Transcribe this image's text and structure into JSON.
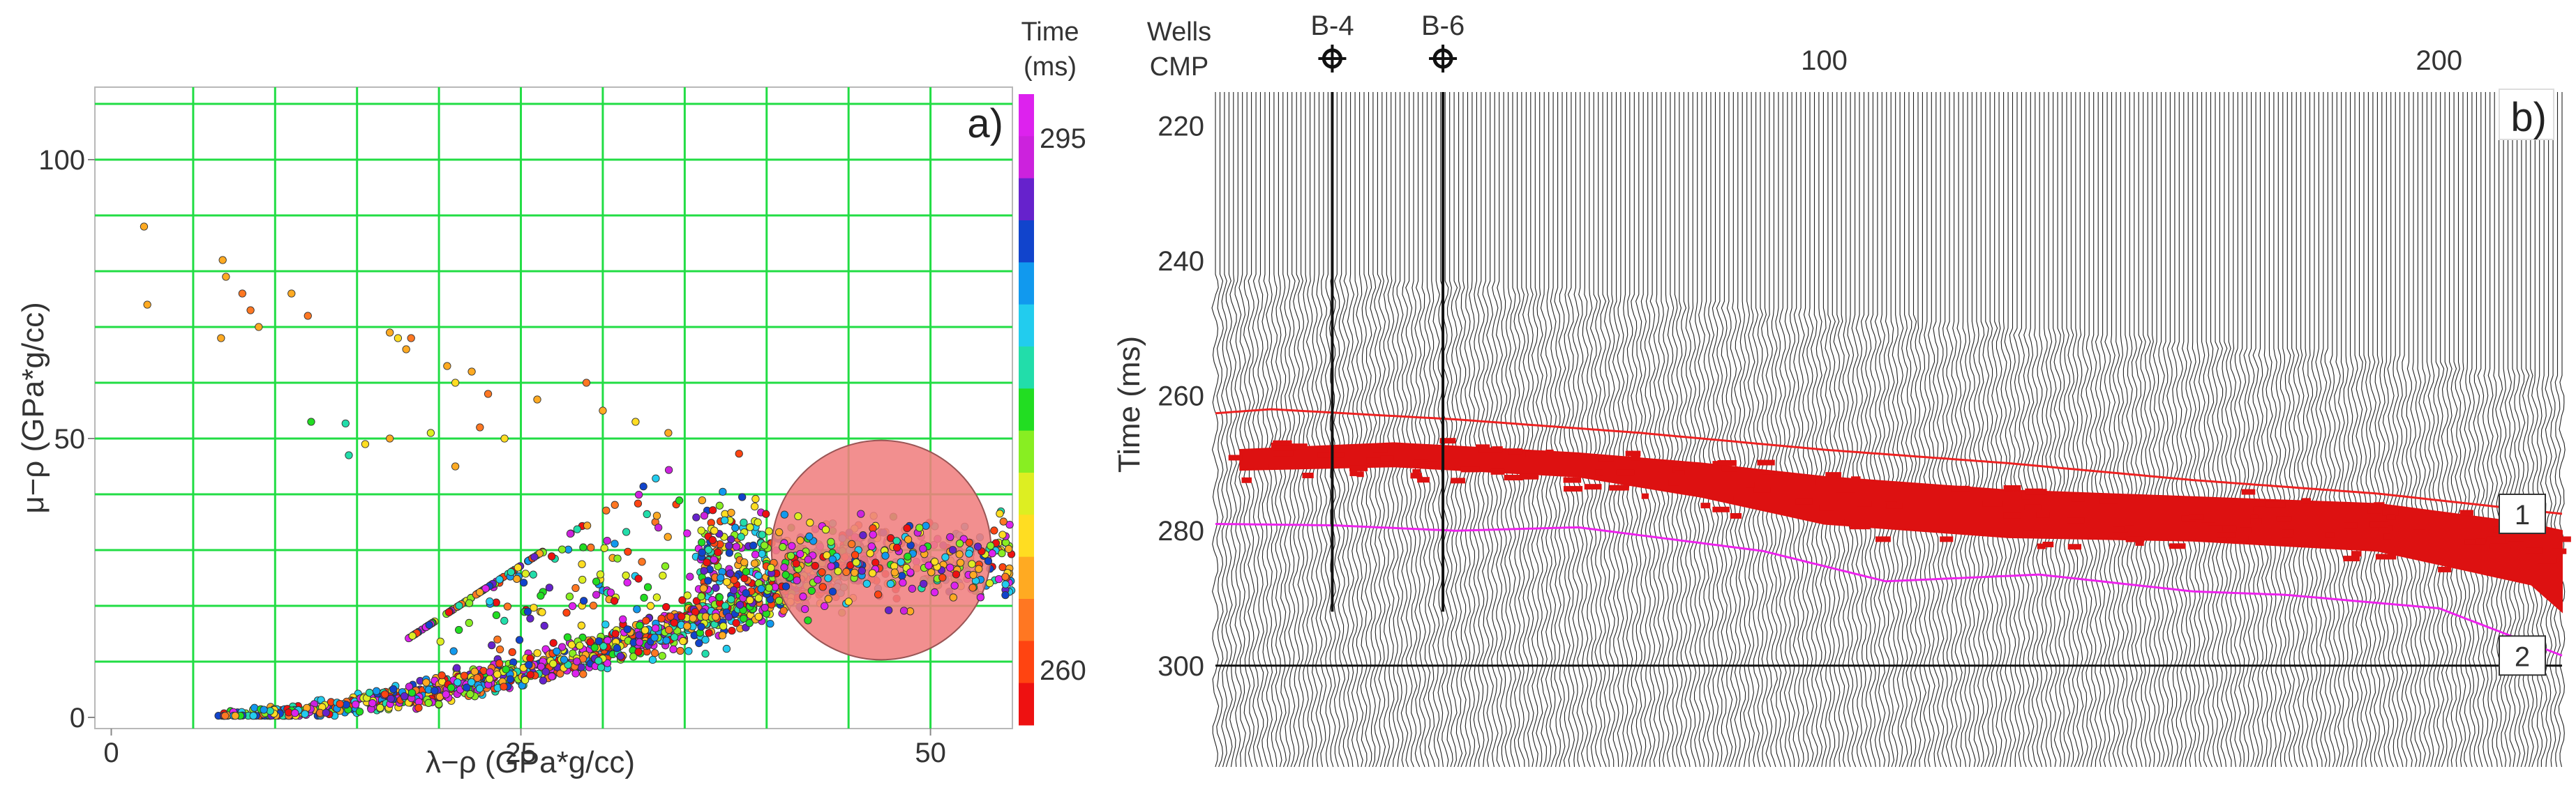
{
  "chart_data": [
    {
      "type": "scatter",
      "panel_label": "a)",
      "xlabel": "λ−ρ (GPa*g/cc)",
      "ylabel": "μ−ρ (GPa*g/cc)",
      "xlim": [
        -1,
        55
      ],
      "ylim": [
        -2,
        113
      ],
      "xticks": [
        "0",
        "25",
        "50"
      ],
      "yticks": [
        "0",
        "50",
        "100"
      ],
      "grid": true,
      "grid_color": "#22dd44",
      "colorbar": {
        "title_line1": "Time",
        "title_line2": "(ms)",
        "tick_top": "295",
        "tick_bottom": "260",
        "colors": [
          "#ee1111",
          "#ff4411",
          "#ff7722",
          "#ffaa22",
          "#ffdd22",
          "#ddee22",
          "#88ee22",
          "#22dd22",
          "#22ddaa",
          "#22ccee",
          "#1199ee",
          "#1144cc",
          "#6622cc",
          "#cc22dd",
          "#dd22ee"
        ]
      },
      "highlight_circle": {
        "cx": 47,
        "cy": 30,
        "r": 6.7,
        "color": "#f08080"
      },
      "outlier_points": [
        {
          "x": 2,
          "y": 88,
          "c": "#ffaa22"
        },
        {
          "x": 2.2,
          "y": 74,
          "c": "#ffaa22"
        },
        {
          "x": 6.8,
          "y": 82,
          "c": "#ffaa22"
        },
        {
          "x": 7,
          "y": 79,
          "c": "#ffaa22"
        },
        {
          "x": 6.7,
          "y": 68,
          "c": "#ffaa22"
        },
        {
          "x": 8,
          "y": 76,
          "c": "#ff7722"
        },
        {
          "x": 8.5,
          "y": 73,
          "c": "#ff7722"
        },
        {
          "x": 9,
          "y": 70,
          "c": "#ffaa22"
        },
        {
          "x": 11,
          "y": 76,
          "c": "#ffaa22"
        },
        {
          "x": 12,
          "y": 72,
          "c": "#ff7722"
        },
        {
          "x": 17,
          "y": 69,
          "c": "#ffaa22"
        },
        {
          "x": 17.5,
          "y": 68,
          "c": "#ffdd22"
        },
        {
          "x": 18,
          "y": 66,
          "c": "#ffaa22"
        },
        {
          "x": 18.3,
          "y": 68,
          "c": "#ff7722"
        },
        {
          "x": 20.5,
          "y": 63,
          "c": "#ffaa22"
        },
        {
          "x": 22,
          "y": 62,
          "c": "#ffaa22"
        },
        {
          "x": 21,
          "y": 60,
          "c": "#ffdd22"
        },
        {
          "x": 23,
          "y": 58,
          "c": "#ff7722"
        },
        {
          "x": 12.2,
          "y": 53,
          "c": "#22dd22"
        },
        {
          "x": 14.3,
          "y": 52.7,
          "c": "#22ddaa"
        },
        {
          "x": 14.5,
          "y": 47,
          "c": "#22ddaa"
        },
        {
          "x": 15.5,
          "y": 49,
          "c": "#ffdd22"
        },
        {
          "x": 17,
          "y": 50,
          "c": "#ffaa22"
        },
        {
          "x": 19.5,
          "y": 51,
          "c": "#ddee22"
        },
        {
          "x": 21,
          "y": 45,
          "c": "#ffaa22"
        },
        {
          "x": 22.5,
          "y": 52,
          "c": "#ff7722"
        },
        {
          "x": 24,
          "y": 50,
          "c": "#ffdd22"
        },
        {
          "x": 26,
          "y": 57,
          "c": "#ffaa22"
        },
        {
          "x": 29,
          "y": 60,
          "c": "#ff7722"
        },
        {
          "x": 30,
          "y": 55,
          "c": "#ffaa22"
        },
        {
          "x": 32,
          "y": 53,
          "c": "#ffdd22"
        },
        {
          "x": 34,
          "y": 51,
          "c": "#ffaa22"
        }
      ],
      "density_bands": [
        {
          "type": "power",
          "x_from": 6.5,
          "x_to": 46,
          "a": 29,
          "p": 1.7,
          "spread": 2.2,
          "n": 1200
        },
        {
          "type": "cloud",
          "x_from": 18,
          "x_to": 40,
          "y_from": 4,
          "y_to": 52,
          "n": 260
        },
        {
          "type": "cloud",
          "x_from": 36,
          "x_to": 55,
          "y_from": 16,
          "y_to": 40,
          "n": 520
        }
      ]
    },
    {
      "type": "seismic_section",
      "panel_label": "b)",
      "ylabel": "Time (ms)",
      "header_wells": "Wells",
      "header_cmp": "CMP",
      "yticks": [
        "220",
        "240",
        "260",
        "280",
        "300"
      ],
      "xticks": [
        "100",
        "200"
      ],
      "time_range": [
        215,
        315
      ],
      "cmp_range": [
        1,
        220
      ],
      "wells": [
        {
          "name": "B-4",
          "cmp": 20
        },
        {
          "name": "B-6",
          "cmp": 38
        }
      ],
      "horizons": [
        {
          "label": "1",
          "color": "#ee2222",
          "points": [
            [
              1,
              262.6
            ],
            [
              10,
              262
            ],
            [
              40,
              263.5
            ],
            [
              70,
              265.5
            ],
            [
              100,
              268
            ],
            [
              130,
              270
            ],
            [
              160,
              272.5
            ],
            [
              190,
              274.5
            ],
            [
              220,
              277.5
            ]
          ]
        },
        {
          "label": "2",
          "color": "#ee22ee",
          "points": [
            [
              1,
              279
            ],
            [
              20,
              279.2
            ],
            [
              40,
              280
            ],
            [
              60,
              279.5
            ],
            [
              90,
              283
            ],
            [
              110,
              287.5
            ],
            [
              135,
              286.5
            ],
            [
              160,
              289
            ],
            [
              175,
              289.5
            ],
            [
              200,
              291.5
            ],
            [
              220,
              298.5
            ]
          ]
        }
      ],
      "anomaly": {
        "color": "#dd1111",
        "top": [
          [
            5,
            268
          ],
          [
            30,
            267
          ],
          [
            60,
            268.5
          ],
          [
            80,
            270
          ],
          [
            100,
            272
          ],
          [
            130,
            274
          ],
          [
            160,
            275
          ],
          [
            190,
            276
          ],
          [
            215,
            279
          ],
          [
            220,
            280
          ]
        ],
        "bottom": [
          [
            5,
            271
          ],
          [
            30,
            270.5
          ],
          [
            60,
            272
          ],
          [
            80,
            275
          ],
          [
            100,
            279
          ],
          [
            130,
            281
          ],
          [
            160,
            281.5
          ],
          [
            190,
            283
          ],
          [
            215,
            288
          ],
          [
            220,
            292
          ]
        ]
      },
      "reference_line_time": 300
    }
  ]
}
